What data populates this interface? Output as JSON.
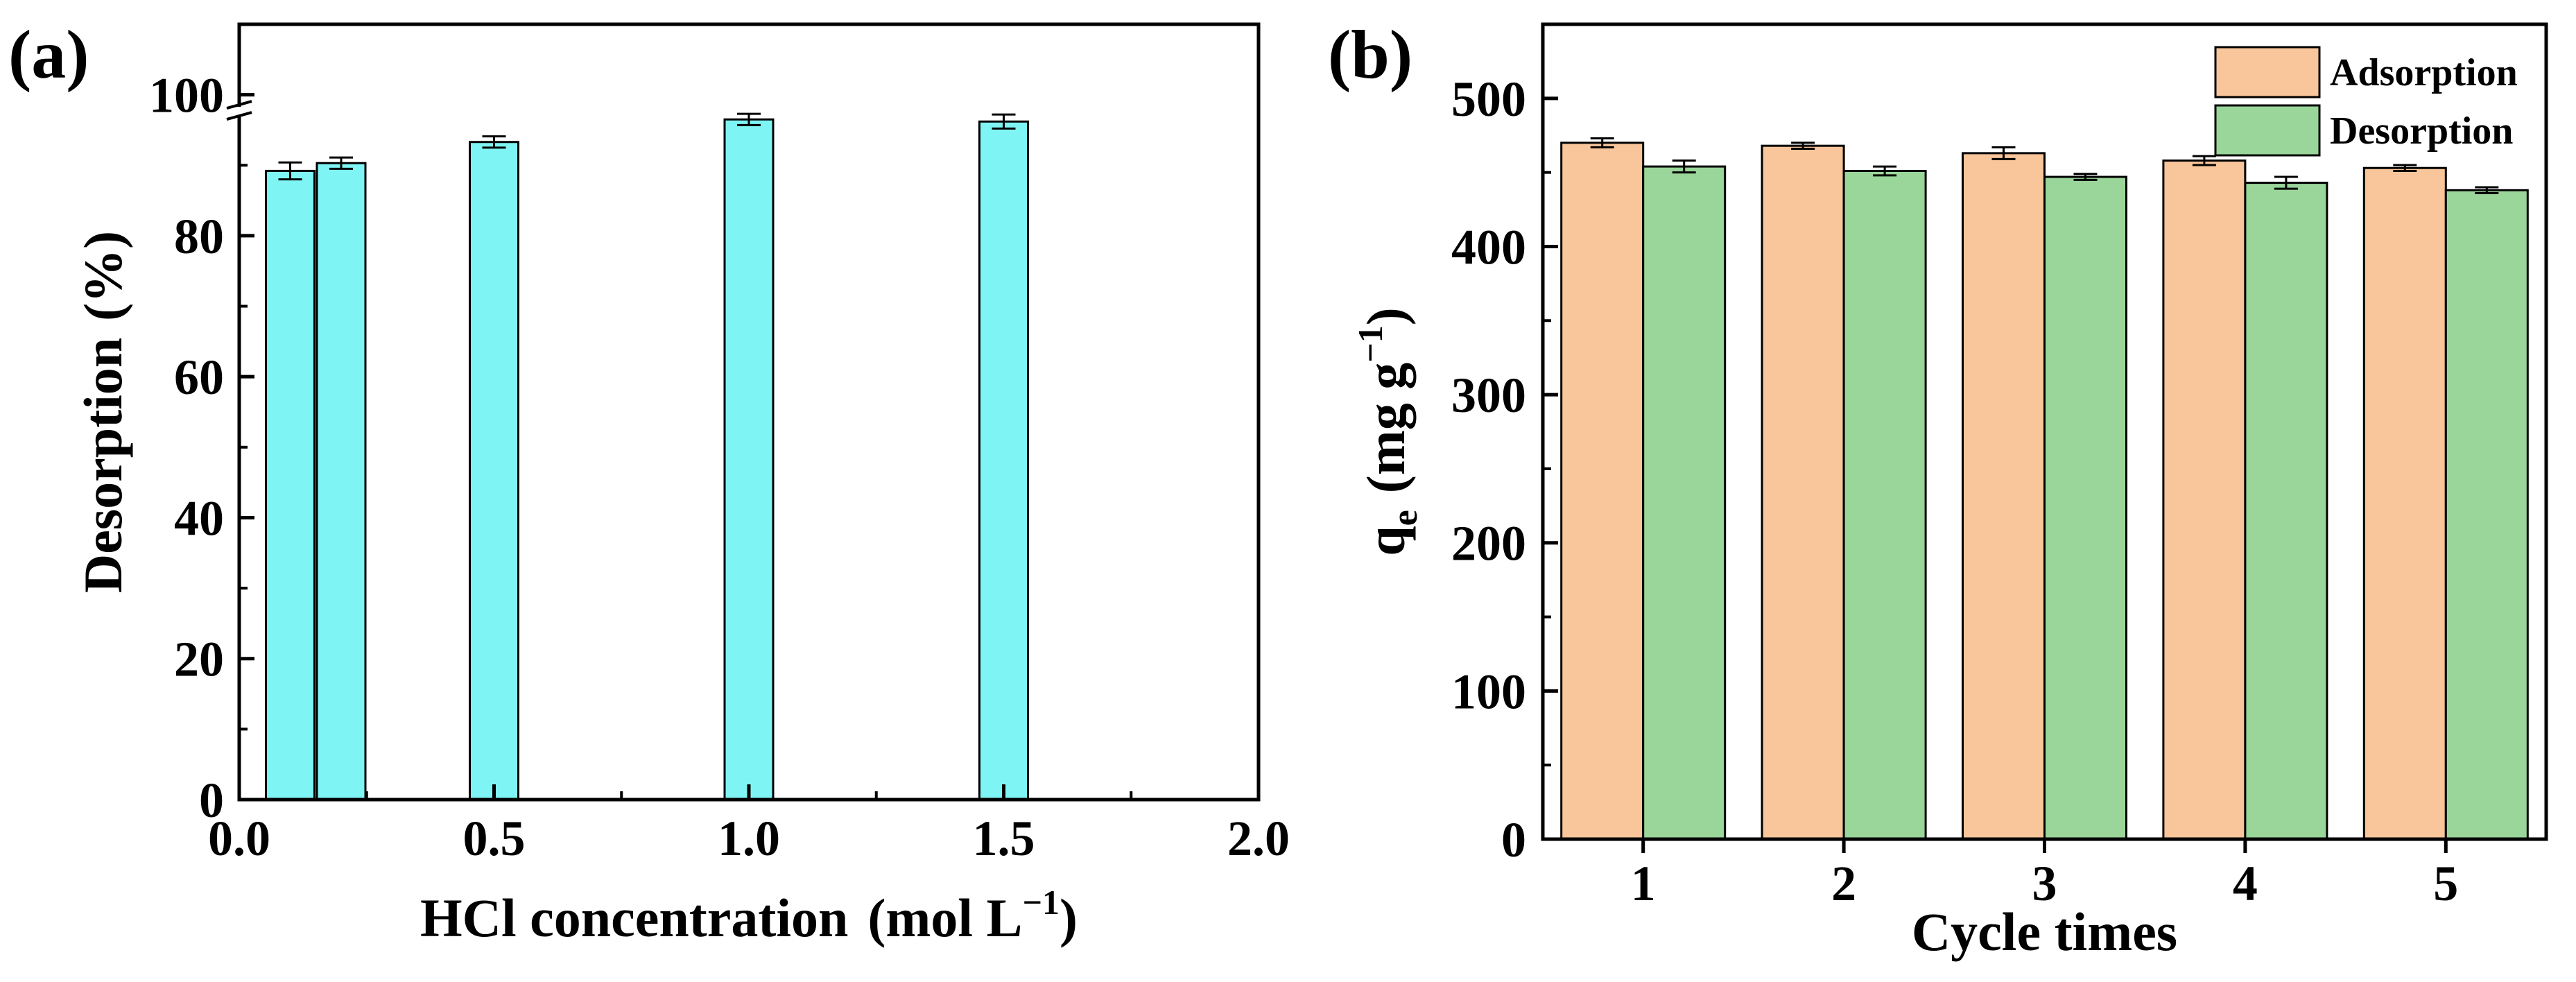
{
  "colors": {
    "desorption_a": "#7FF4F4",
    "adsorption": "#F9C59A",
    "desorption_b": "#9AD69A",
    "axis": "#000000"
  },
  "chart_data": [
    {
      "panel_label": "(a)",
      "type": "bar",
      "title": "",
      "xlabel": "HCl concentration",
      "xlabel_unit_prefix": "(mol L",
      "xlabel_unit_sup": "−1",
      "xlabel_unit_suffix": ")",
      "ylabel": "Desorption",
      "ylabel_unit": "(%)",
      "xlim": [
        0.0,
        2.0
      ],
      "ylim": [
        0,
        110
      ],
      "xticks": [
        "0.0",
        "0.5",
        "1.0",
        "1.5",
        "2.0"
      ],
      "yticks": [
        "0",
        "20",
        "40",
        "60",
        "80",
        "100"
      ],
      "grid": false,
      "x": [
        0.1,
        0.2,
        0.5,
        1.0,
        1.5
      ],
      "values": [
        89.2,
        90.3,
        93.3,
        96.5,
        96.2
      ],
      "errors": [
        1.2,
        0.8,
        0.8,
        0.8,
        1.0
      ]
    },
    {
      "panel_label": "(b)",
      "type": "bar",
      "title": "",
      "xlabel": "Cycle times",
      "ylabel_main": "q",
      "ylabel_sub": "e",
      "ylabel_unit_prefix": "(mg g",
      "ylabel_unit_sup": "−1",
      "ylabel_unit_suffix": ")",
      "ylim": [
        0,
        550
      ],
      "yticks": [
        "0",
        "100",
        "200",
        "300",
        "400",
        "500"
      ],
      "grid": false,
      "legend_position": "top-right",
      "categories": [
        "1",
        "2",
        "3",
        "4",
        "5"
      ],
      "series": [
        {
          "name": "Adsorption",
          "values": [
            470,
            468,
            463,
            458,
            453
          ],
          "errors": [
            3,
            2,
            4,
            3,
            2
          ]
        },
        {
          "name": "Desorption",
          "values": [
            454,
            451,
            447,
            443,
            438
          ],
          "errors": [
            4,
            3,
            2,
            4,
            2
          ]
        }
      ]
    }
  ]
}
